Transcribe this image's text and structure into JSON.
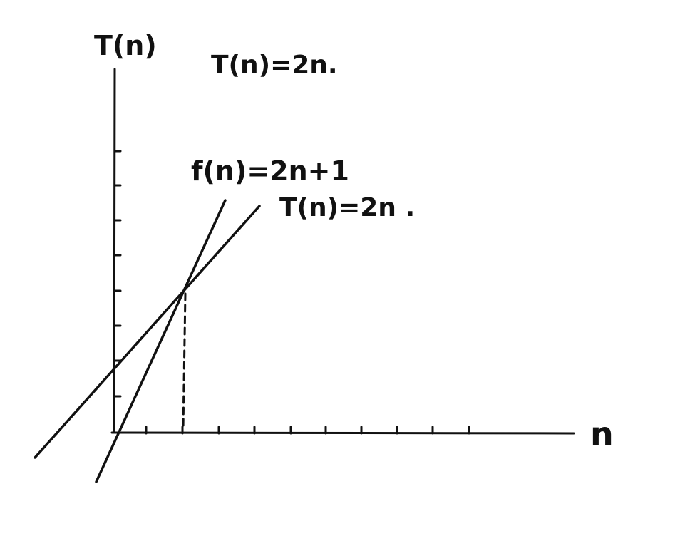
{
  "labels": {
    "y_axis": "T(n)",
    "x_axis": "n",
    "top_equation": "T(n)=2n.",
    "line_f": "f(n)=2n+1",
    "line_t": "T(n)=2n ."
  },
  "style": {
    "ink": "#111111",
    "background": "#ffffff"
  }
}
